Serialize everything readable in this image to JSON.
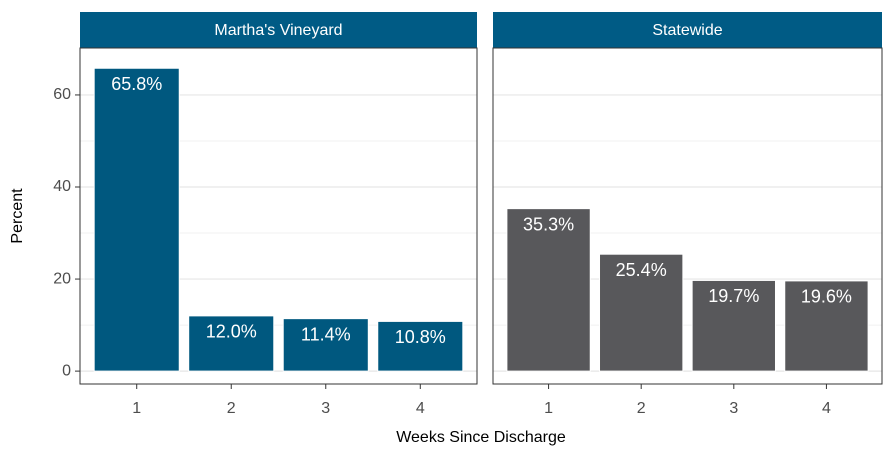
{
  "x_label": "Weeks Since Discharge",
  "y_label": "Percent",
  "chart_data": [
    {
      "type": "bar",
      "title": "Martha's Vineyard",
      "categories": [
        "1",
        "2",
        "3",
        "4"
      ],
      "values": [
        65.8,
        12.0,
        11.4,
        10.8
      ],
      "value_labels": [
        "65.8%",
        "12.0%",
        "11.4%",
        "10.8%"
      ],
      "color": "#00587f",
      "ylim": [
        -2.8,
        70.2
      ],
      "yticks": [
        0,
        20,
        40,
        60
      ],
      "minor_yticks": [
        10,
        30,
        50
      ],
      "grid": true
    },
    {
      "type": "bar",
      "title": "Statewide",
      "categories": [
        "1",
        "2",
        "3",
        "4"
      ],
      "values": [
        35.3,
        25.4,
        19.7,
        19.6
      ],
      "value_labels": [
        "35.3%",
        "25.4%",
        "19.7%",
        "19.6%"
      ],
      "color": "#58585b",
      "ylim": [
        -2.8,
        70.2
      ],
      "yticks": [
        0,
        20,
        40,
        60
      ],
      "minor_yticks": [
        10,
        30,
        50
      ],
      "grid": true
    }
  ]
}
